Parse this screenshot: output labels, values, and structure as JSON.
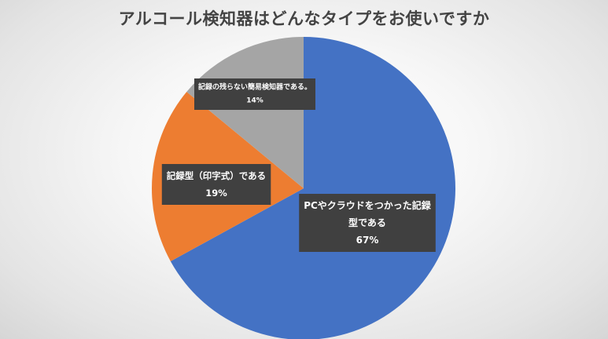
{
  "title": "アルコール検知器はどんなタイプをお使いですか",
  "colors": {
    "background": "#f4f4f4",
    "label_box": "#404040",
    "label_text": "#ffffff",
    "title_text": "#444444"
  },
  "chart_data": {
    "type": "pie",
    "title": "アルコール検知器はどんなタイプをお使いですか",
    "start_angle_deg": 0,
    "direction": "clockwise",
    "slices": [
      {
        "label_lines": [
          "PCやクラウドをつかった記録",
          "型である"
        ],
        "value": 67,
        "value_label": "67%",
        "color": "#4472c4"
      },
      {
        "label_lines": [
          "記録型（印字式）である"
        ],
        "value": 19,
        "value_label": "19%",
        "color": "#ed7d31"
      },
      {
        "label_lines": [
          "記録の残らない簡易検知器である。"
        ],
        "value": 14,
        "value_label": "14%",
        "color": "#a5a5a5"
      }
    ]
  }
}
